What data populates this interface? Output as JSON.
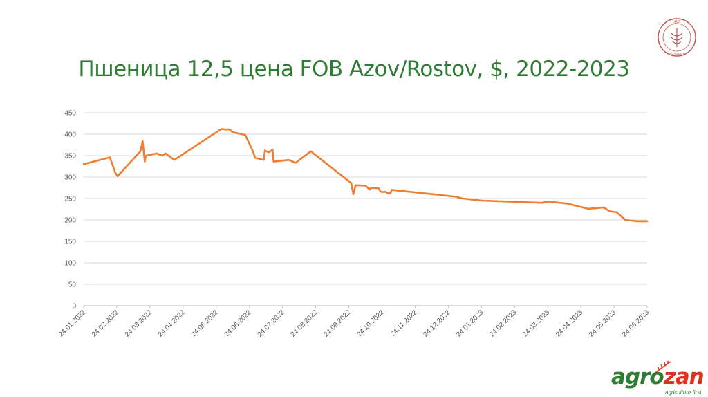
{
  "title": "Пшеница 12,5 цена FOB Azov/Rostov, $, 2022-2023",
  "logos": {
    "ibp_text": "IBP",
    "ibp_sub": "ACADEMY",
    "agro_part1": "agro",
    "agro_part2": "zan",
    "agro_tagline": "agriculture first"
  },
  "colors": {
    "line": "#ed7d31",
    "grid": "#d9d9d9",
    "title": "#2e7d32"
  },
  "chart_data": {
    "type": "line",
    "title": "Пшеница 12,5 цена FOB Azov/Rostov, $, 2022-2023",
    "xlabel": "",
    "ylabel": "",
    "ylim": [
      0,
      450
    ],
    "yticks": [
      0,
      50,
      100,
      150,
      200,
      250,
      300,
      350,
      400,
      450
    ],
    "xlim": [
      "2022-01-24",
      "2023-06-24"
    ],
    "xtick_labels": [
      "24.01.2022",
      "24.02.2022",
      "24.03.2022",
      "24.04.2022",
      "24.05.2022",
      "24.06.2022",
      "24.07.2022",
      "24.08.2022",
      "24.09.2022",
      "24.10.2022",
      "24.11.2022",
      "24.12.2022",
      "24.01.2023",
      "24.02.2023",
      "24.03.2023",
      "24.04.2023",
      "24.05.2023",
      "24.06.2023"
    ],
    "grid": true,
    "legend": "none",
    "series": [
      {
        "points": [
          [
            "2022-01-24",
            330
          ],
          [
            "2022-02-17",
            346
          ],
          [
            "2022-02-22",
            310
          ],
          [
            "2022-02-24",
            302
          ],
          [
            "2022-03-17",
            360
          ],
          [
            "2022-03-19",
            384
          ],
          [
            "2022-03-21",
            336
          ],
          [
            "2022-03-22",
            350
          ],
          [
            "2022-04-01",
            355
          ],
          [
            "2022-04-06",
            350
          ],
          [
            "2022-04-09",
            355
          ],
          [
            "2022-04-17",
            340
          ],
          [
            "2022-05-30",
            412
          ],
          [
            "2022-06-04",
            411
          ],
          [
            "2022-06-07",
            411
          ],
          [
            "2022-06-09",
            405
          ],
          [
            "2022-06-21",
            398
          ],
          [
            "2022-06-28",
            360
          ],
          [
            "2022-06-30",
            345
          ],
          [
            "2022-07-06",
            341
          ],
          [
            "2022-07-08",
            340
          ],
          [
            "2022-07-09",
            362
          ],
          [
            "2022-07-12",
            358
          ],
          [
            "2022-07-13",
            358
          ],
          [
            "2022-07-16",
            364
          ],
          [
            "2022-07-17",
            336
          ],
          [
            "2022-07-31",
            340
          ],
          [
            "2022-08-06",
            333
          ],
          [
            "2022-08-20",
            360
          ],
          [
            "2022-09-26",
            286
          ],
          [
            "2022-09-28",
            260
          ],
          [
            "2022-09-30",
            281
          ],
          [
            "2022-10-09",
            280
          ],
          [
            "2022-10-13",
            271
          ],
          [
            "2022-10-14",
            275
          ],
          [
            "2022-10-21",
            274
          ],
          [
            "2022-10-23",
            266
          ],
          [
            "2022-10-25",
            265
          ],
          [
            "2022-10-27",
            266
          ],
          [
            "2022-10-29",
            263
          ],
          [
            "2022-11-01",
            262
          ],
          [
            "2022-11-02",
            270
          ],
          [
            "2022-12-10",
            260
          ],
          [
            "2022-12-31",
            254
          ],
          [
            "2023-01-06",
            250
          ],
          [
            "2023-01-24",
            245
          ],
          [
            "2023-03-20",
            240
          ],
          [
            "2023-03-25",
            243
          ],
          [
            "2023-04-12",
            238
          ],
          [
            "2023-05-01",
            226
          ],
          [
            "2023-05-15",
            229
          ],
          [
            "2023-05-21",
            220
          ],
          [
            "2023-05-27",
            218
          ],
          [
            "2023-06-04",
            200
          ],
          [
            "2023-06-15",
            197
          ],
          [
            "2023-06-24",
            197
          ]
        ]
      }
    ]
  }
}
